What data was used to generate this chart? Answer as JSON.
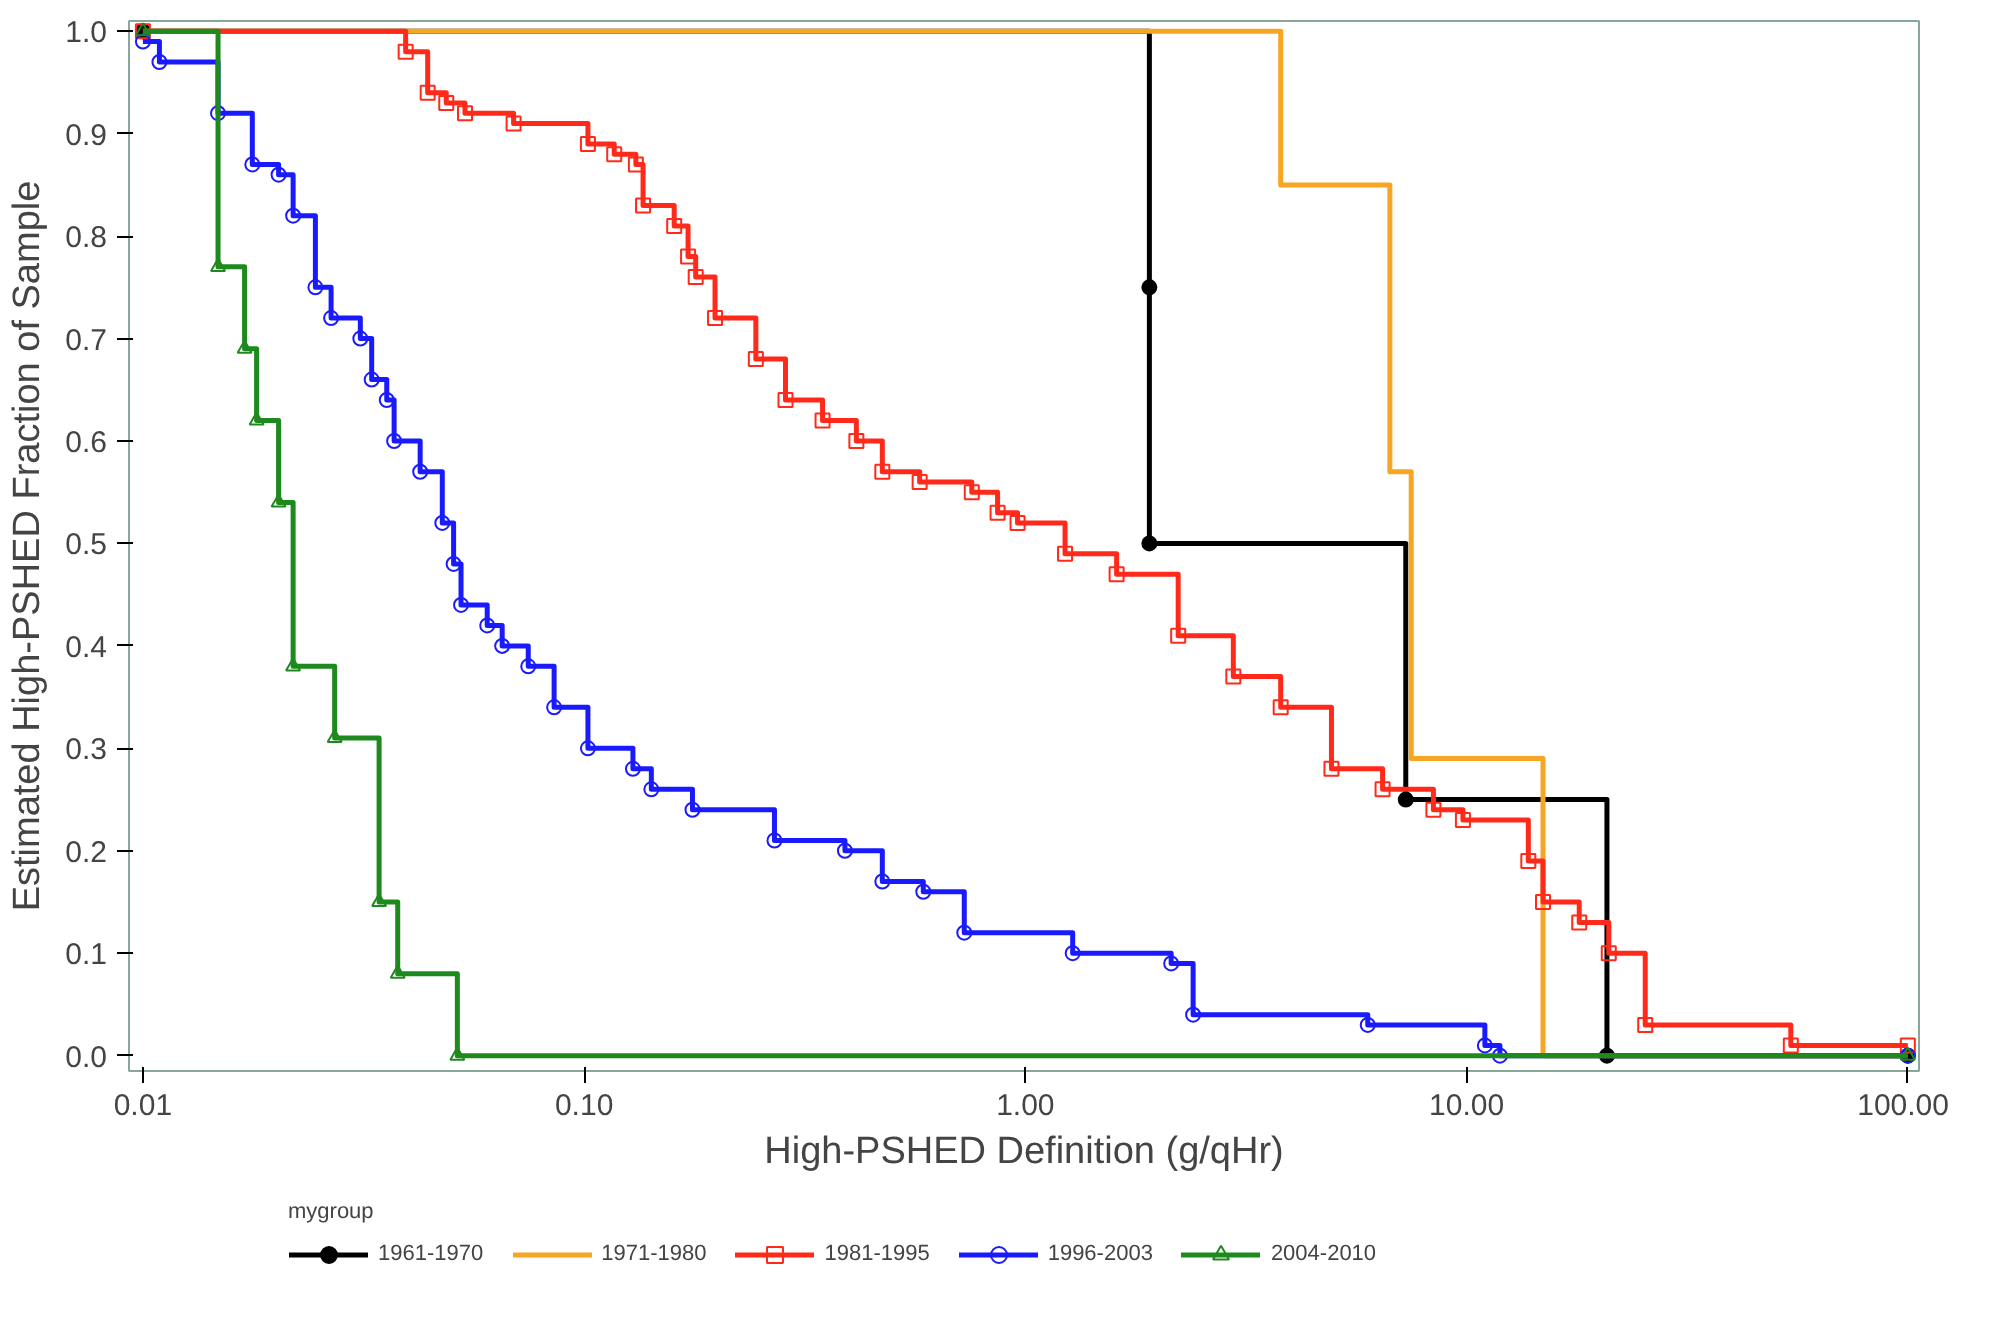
{
  "chart_data": {
    "type": "step",
    "xlabel": "High-PSHED Definition (g/qHr)",
    "ylabel": "Estimated High-PSHED Fraction of Sample",
    "legend_title": "mygroup",
    "legend": "bottom",
    "log": "x",
    "xlim": [
      0.0093,
      106
    ],
    "ylim": [
      -0.015,
      1.01
    ],
    "xticks": [
      {
        "value": 0.01,
        "label": "0.01"
      },
      {
        "value": 0.1,
        "label": "0.10"
      },
      {
        "value": 1,
        "label": "1.00"
      },
      {
        "value": 10,
        "label": "10.00"
      },
      {
        "value": 100,
        "label": "100.00"
      }
    ],
    "yticks": [
      {
        "value": 0,
        "label": "0.0"
      },
      0.1,
      0.2,
      0.3,
      0.4,
      0.5,
      0.6,
      0.7,
      0.8,
      0.9,
      {
        "value": 1,
        "label": "1.0"
      }
    ],
    "series": [
      {
        "name": "1961-1970",
        "color": "#000000",
        "marker": "circle",
        "x": [
          0.01,
          1.91,
          1.91,
          7.28,
          20.8,
          100
        ],
        "values": [
          1,
          0.75,
          0.5,
          0.25,
          0,
          0
        ]
      },
      {
        "name": "1971-1980",
        "color": "#f5a623",
        "marker": "none",
        "x": [
          0.01,
          3.79,
          6.7,
          7.49,
          14.9,
          100
        ],
        "values": [
          1,
          0.85,
          0.57,
          0.29,
          0,
          0
        ]
      },
      {
        "name": "1981-1995",
        "color": "#ff2a1a",
        "marker": "square",
        "x": [
          0.01,
          0.0394,
          0.0442,
          0.0487,
          0.0537,
          0.0692,
          0.102,
          0.117,
          0.131,
          0.136,
          0.16,
          0.172,
          0.179,
          0.198,
          0.245,
          0.286,
          0.347,
          0.414,
          0.474,
          0.576,
          0.756,
          0.865,
          0.96,
          1.23,
          1.61,
          2.22,
          2.96,
          3.79,
          4.94,
          6.45,
          8.41,
          9.81,
          13.8,
          14.9,
          18.0,
          21.0,
          25.4,
          54.3,
          100
        ],
        "values": [
          1,
          0.98,
          0.94,
          0.93,
          0.92,
          0.91,
          0.89,
          0.88,
          0.87,
          0.83,
          0.81,
          0.78,
          0.76,
          0.72,
          0.68,
          0.64,
          0.62,
          0.6,
          0.57,
          0.56,
          0.55,
          0.53,
          0.52,
          0.49,
          0.47,
          0.41,
          0.37,
          0.34,
          0.28,
          0.26,
          0.24,
          0.23,
          0.19,
          0.15,
          0.13,
          0.1,
          0.03,
          0.01,
          0.01
        ]
      },
      {
        "name": "1996-2003",
        "color": "#1a1aff",
        "marker": "circle",
        "x": [
          0.01,
          0.0109,
          0.0148,
          0.0177,
          0.0203,
          0.0219,
          0.0246,
          0.0267,
          0.0311,
          0.033,
          0.0357,
          0.0371,
          0.0425,
          0.0477,
          0.0506,
          0.0526,
          0.0603,
          0.0652,
          0.0747,
          0.0855,
          0.102,
          0.129,
          0.142,
          0.176,
          0.27,
          0.39,
          0.474,
          0.587,
          0.727,
          1.28,
          2.14,
          2.4,
          5.97,
          11.0,
          11.9,
          100
        ],
        "values": [
          0.99,
          0.97,
          0.92,
          0.87,
          0.86,
          0.82,
          0.75,
          0.72,
          0.7,
          0.66,
          0.64,
          0.6,
          0.57,
          0.52,
          0.48,
          0.44,
          0.42,
          0.4,
          0.38,
          0.34,
          0.3,
          0.28,
          0.26,
          0.24,
          0.21,
          0.2,
          0.17,
          0.16,
          0.12,
          0.1,
          0.09,
          0.04,
          0.03,
          0.01,
          0,
          0
        ]
      },
      {
        "name": "2004-2010",
        "color": "#1e8a1e",
        "marker": "triangle",
        "x": [
          0.01,
          0.0148,
          0.017,
          0.0181,
          0.0203,
          0.0219,
          0.0272,
          0.0343,
          0.0378,
          0.0516,
          100
        ],
        "values": [
          1,
          0.77,
          0.69,
          0.62,
          0.54,
          0.38,
          0.31,
          0.15,
          0.08,
          0,
          0
        ]
      }
    ]
  }
}
